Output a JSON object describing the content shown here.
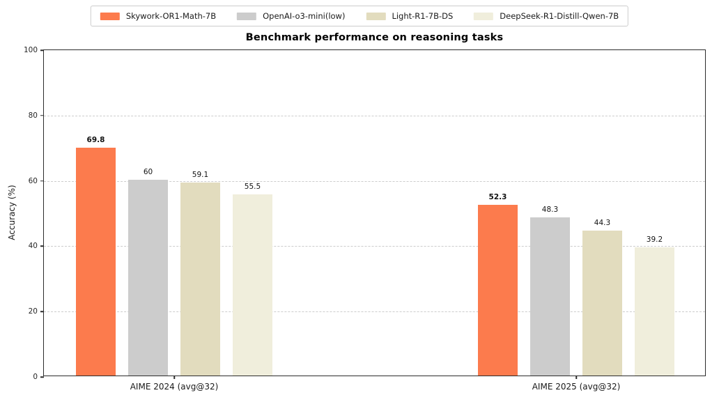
{
  "figure": {
    "background": "#ffffff"
  },
  "chart_data": {
    "type": "bar",
    "title": "Benchmark performance on reasoning tasks",
    "xlabel": "",
    "ylabel": "Accuracy (%)",
    "ylim": [
      0,
      100
    ],
    "yticks": [
      0,
      20,
      40,
      60,
      80,
      100
    ],
    "grid": {
      "axis": "y",
      "style": "dashed",
      "color": "#cccccc"
    },
    "legend_position": "top-center-outside",
    "categories": [
      "AIME 2024 (avg@32)",
      "AIME 2025 (avg@32)"
    ],
    "series": [
      {
        "name": "Skywork-OR1-Math-7B",
        "color": "#FC7B4D",
        "values": [
          69.8,
          52.3
        ],
        "emphasized_labels": true
      },
      {
        "name": "OpenAI-o3-mini(low)",
        "color": "#CCCCCC",
        "values": [
          60,
          48.3
        ],
        "emphasized_labels": false
      },
      {
        "name": "Light-R1-7B-DS",
        "color": "#E2DCBE",
        "values": [
          59.1,
          44.3
        ],
        "emphasized_labels": false
      },
      {
        "name": "DeepSeek-R1-Distill-Qwen-7B",
        "color": "#F0EEDC",
        "values": [
          55.5,
          39.2
        ],
        "emphasized_labels": false
      }
    ]
  }
}
